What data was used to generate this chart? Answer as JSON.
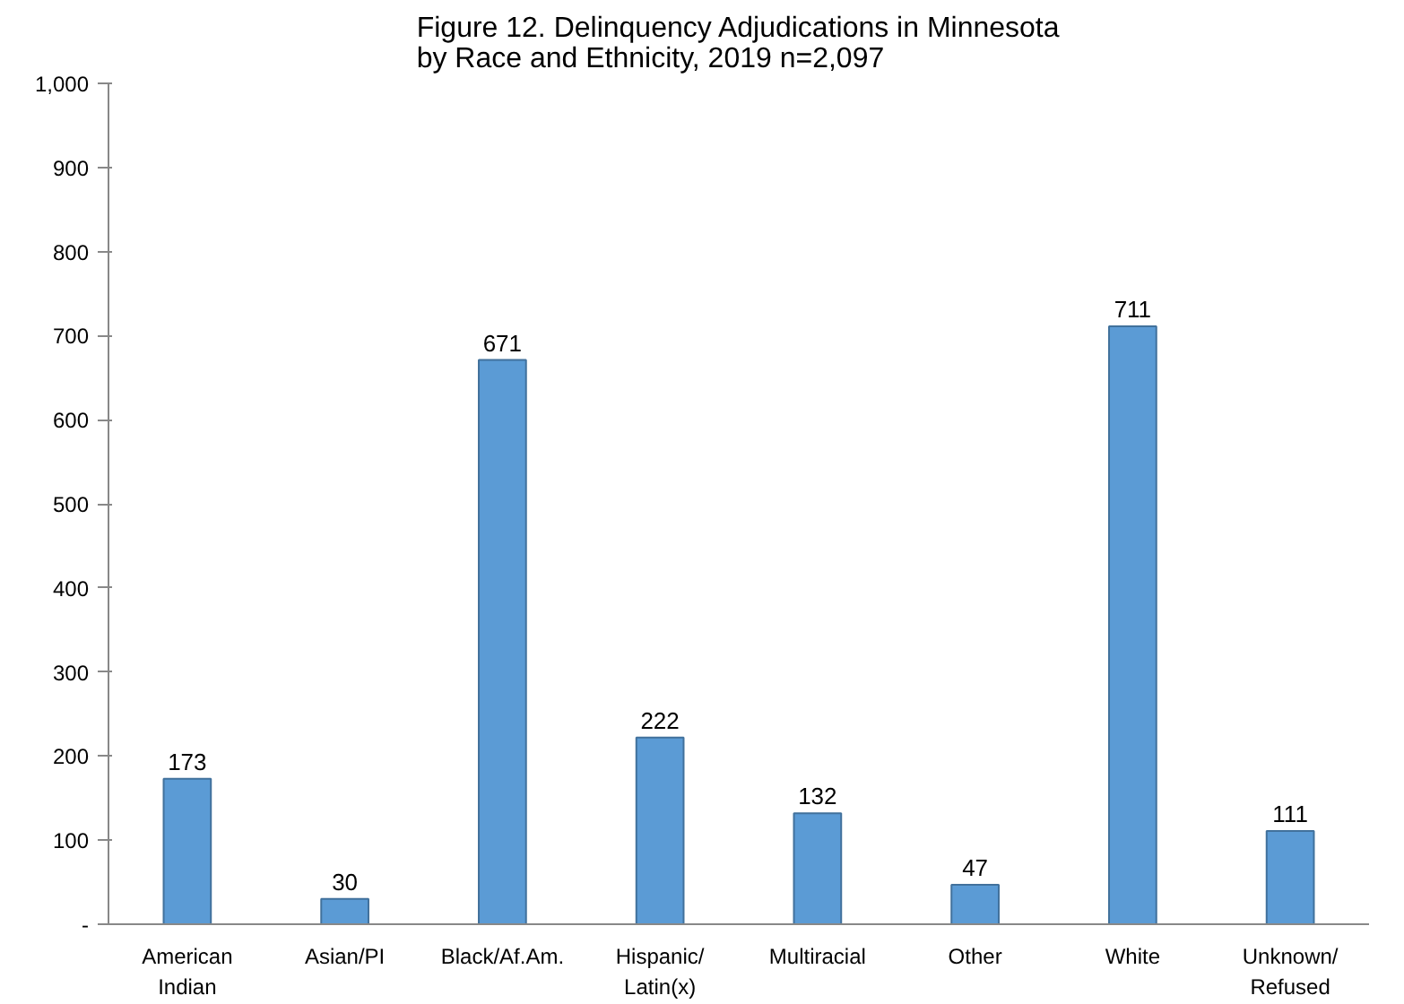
{
  "chart_data": {
    "type": "bar",
    "title": "Figure 12. Delinquency Adjudications in Minnesota\nby Race and Ethnicity, 2019 n=2,097",
    "categories": [
      "American\nIndian",
      "Asian/PI",
      "Black/Af.Am.",
      "Hispanic/\nLatin(x)",
      "Multiracial",
      "Other",
      "White",
      "Unknown/\nRefused"
    ],
    "values": [
      173,
      30,
      671,
      222,
      132,
      47,
      711,
      111
    ],
    "color": "#5b9bd5",
    "ylim": [
      0,
      1000
    ],
    "yticks": [
      {
        "value": 0,
        "label": "-"
      },
      100,
      200,
      300,
      400,
      500,
      600,
      700,
      800,
      900,
      {
        "value": 1000,
        "label": "1,000"
      }
    ],
    "data_labels": true,
    "grid": false
  }
}
